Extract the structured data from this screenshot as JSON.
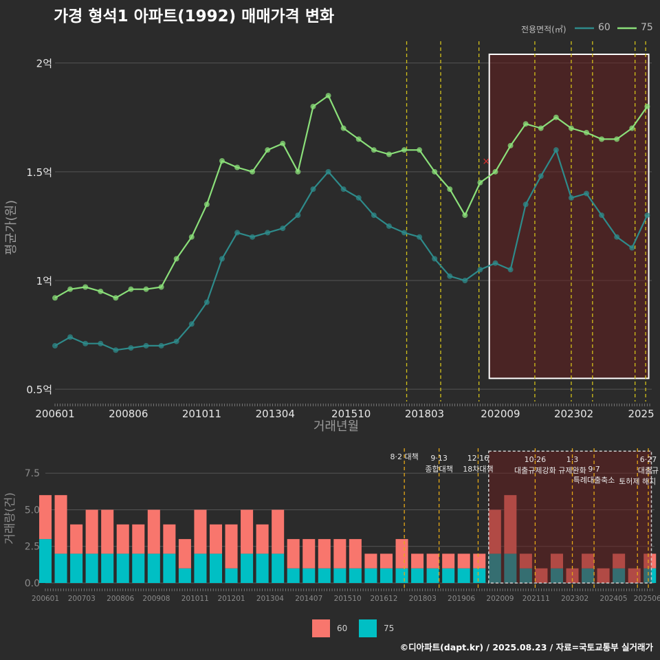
{
  "title": "가경 형석1 아파트(1992) 매매가격 변화",
  "source": "©디아파트(dapt.kr) / 2025.08.23 / 자료=국토교통부 실거래가",
  "legend_title": "전용면적(㎡)",
  "colors": {
    "s60_line": "#2e8b8b",
    "s75_line": "#8be07a",
    "s60_bar": "#f8766d",
    "s75_bar": "#00bfc4",
    "event": "#d4c21a",
    "event_bottom": "#e6a817",
    "highlight_fill": "#6a1e1e",
    "marker": "#e03030"
  },
  "chart_data": [
    {
      "type": "line",
      "title": "가경 형석1 아파트(1992) 매매가격 변화",
      "xlabel": "거래년월",
      "ylabel": "평균가(원)",
      "x_tick_labels": [
        "200601",
        "200806",
        "201011",
        "201304",
        "201510",
        "201803",
        "202009",
        "202302",
        "2025"
      ],
      "x_tick_values": [
        2006.0,
        2008.417,
        2010.833,
        2013.25,
        2015.75,
        2018.167,
        2020.667,
        2023.083,
        2025.3
      ],
      "xlim": [
        2006.0,
        2025.65
      ],
      "y_tick_labels": [
        "0.5억",
        "1억",
        "1.5억",
        "2억"
      ],
      "y_tick_values": [
        0.5,
        1.0,
        1.5,
        2.0
      ],
      "ylim": [
        0.45,
        2.1
      ],
      "y_unit": "억",
      "legend": [
        "60",
        "75"
      ],
      "legend_position": "top-right",
      "grid": true,
      "highlight_box": {
        "x": [
          2020.3,
          2025.55
        ],
        "y": [
          0.55,
          2.04
        ]
      },
      "event_lines_x": [
        2017.58,
        2018.7,
        2019.96,
        2021.8,
        2023.0,
        2023.7,
        2025.1,
        2025.45
      ],
      "markers": [
        {
          "x": 2020.2,
          "y": 1.55,
          "symbol": "×"
        }
      ],
      "series": [
        {
          "name": "60",
          "x": [
            2006.0,
            2006.5,
            2007.0,
            2007.5,
            2008.0,
            2008.5,
            2009.0,
            2009.5,
            2010.0,
            2010.5,
            2011.0,
            2011.5,
            2012.0,
            2012.5,
            2013.0,
            2013.5,
            2014.0,
            2014.5,
            2015.0,
            2015.5,
            2016.0,
            2016.5,
            2017.0,
            2017.5,
            2018.0,
            2018.5,
            2019.0,
            2019.5,
            2020.0,
            2020.5,
            2021.0,
            2021.5,
            2022.0,
            2022.5,
            2023.0,
            2023.5,
            2024.0,
            2024.5,
            2025.0,
            2025.5
          ],
          "y": [
            0.7,
            0.74,
            0.71,
            0.71,
            0.68,
            0.69,
            0.7,
            0.7,
            0.72,
            0.8,
            0.9,
            1.1,
            1.22,
            1.2,
            1.22,
            1.24,
            1.3,
            1.42,
            1.5,
            1.42,
            1.38,
            1.3,
            1.25,
            1.22,
            1.2,
            1.1,
            1.02,
            1.0,
            1.05,
            1.08,
            1.05,
            1.35,
            1.48,
            1.6,
            1.38,
            1.4,
            1.3,
            1.2,
            1.15,
            1.3
          ]
        },
        {
          "name": "75",
          "x": [
            2006.0,
            2006.5,
            2007.0,
            2007.5,
            2008.0,
            2008.5,
            2009.0,
            2009.5,
            2010.0,
            2010.5,
            2011.0,
            2011.5,
            2012.0,
            2012.5,
            2013.0,
            2013.5,
            2014.0,
            2014.5,
            2015.0,
            2015.5,
            2016.0,
            2016.5,
            2017.0,
            2017.5,
            2018.0,
            2018.5,
            2019.0,
            2019.5,
            2020.0,
            2020.5,
            2021.0,
            2021.5,
            2022.0,
            2022.5,
            2023.0,
            2023.5,
            2024.0,
            2024.5,
            2025.0,
            2025.5
          ],
          "y": [
            0.92,
            0.96,
            0.97,
            0.95,
            0.92,
            0.96,
            0.96,
            0.97,
            1.1,
            1.2,
            1.35,
            1.55,
            1.52,
            1.5,
            1.6,
            1.63,
            1.5,
            1.8,
            1.85,
            1.7,
            1.65,
            1.6,
            1.58,
            1.6,
            1.6,
            1.5,
            1.42,
            1.3,
            1.45,
            1.5,
            1.62,
            1.72,
            1.7,
            1.75,
            1.7,
            1.68,
            1.65,
            1.65,
            1.7,
            1.8
          ]
        }
      ]
    },
    {
      "type": "bar",
      "stacked": true,
      "xlabel": "",
      "ylabel": "거래량(건)",
      "x_tick_labels": [
        "200601",
        "200703",
        "200806",
        "200908",
        "201011",
        "201201",
        "201304",
        "201407",
        "201510",
        "201612",
        "201803",
        "201906",
        "202009",
        "202111",
        "202302",
        "202405",
        "202506"
      ],
      "x_tick_values": [
        2006.0,
        2007.17,
        2008.42,
        2009.58,
        2010.83,
        2012.0,
        2013.25,
        2014.5,
        2015.75,
        2016.92,
        2018.17,
        2019.42,
        2020.67,
        2021.83,
        2023.08,
        2024.33,
        2025.42
      ],
      "xlim": [
        2006.0,
        2025.65
      ],
      "y_tick_labels": [
        "0.0",
        "2.5",
        "5.0",
        "7.5"
      ],
      "y_tick_values": [
        0.0,
        2.5,
        5.0,
        7.5
      ],
      "ylim": [
        0,
        9.2
      ],
      "legend": [
        "60",
        "75"
      ],
      "legend_position": "bottom",
      "highlight_box": {
        "x": [
          2020.3,
          2025.55
        ],
        "y": [
          0,
          9.0
        ]
      },
      "event_lines_x": [
        2017.58,
        2018.7,
        2019.96,
        2021.8,
        2023.0,
        2023.7,
        2025.1,
        2025.45
      ],
      "annotations": [
        {
          "x": 2017.58,
          "lines": [
            "8·2 대책"
          ]
        },
        {
          "x": 2018.7,
          "lines": [
            "9·13",
            "종합대책"
          ]
        },
        {
          "x": 2019.96,
          "lines": [
            "12·16",
            "18차대책"
          ]
        },
        {
          "x": 2021.8,
          "lines": [
            "10·26",
            "대출규제강화"
          ]
        },
        {
          "x": 2023.0,
          "lines": [
            "1·3",
            "규제완화"
          ]
        },
        {
          "x": 2023.7,
          "lines": [
            "9·7",
            "특례대출축소"
          ]
        },
        {
          "x": 2025.1,
          "lines": [
            "토허제 해지"
          ]
        },
        {
          "x": 2025.45,
          "lines": [
            "6·27",
            "대출규"
          ]
        }
      ],
      "series": [
        {
          "name": "60",
          "x": [
            2006.0,
            2006.5,
            2007.0,
            2007.5,
            2008.0,
            2008.5,
            2009.0,
            2009.5,
            2010.0,
            2010.5,
            2011.0,
            2011.5,
            2012.0,
            2012.5,
            2013.0,
            2013.5,
            2014.0,
            2014.5,
            2015.0,
            2015.5,
            2016.0,
            2016.5,
            2017.0,
            2017.5,
            2018.0,
            2018.5,
            2019.0,
            2019.5,
            2020.0,
            2020.5,
            2021.0,
            2021.5,
            2022.0,
            2022.5,
            2023.0,
            2023.5,
            2024.0,
            2024.5,
            2025.0,
            2025.5
          ],
          "values": [
            3,
            4,
            2,
            3,
            3,
            2,
            2,
            3,
            2,
            2,
            3,
            2,
            3,
            3,
            2,
            3,
            2,
            2,
            2,
            2,
            2,
            1,
            1,
            2,
            1,
            1,
            1,
            1,
            1,
            3,
            4,
            1,
            1,
            1,
            1,
            1,
            1,
            1,
            1,
            1
          ]
        },
        {
          "name": "75",
          "x": [
            2006.0,
            2006.5,
            2007.0,
            2007.5,
            2008.0,
            2008.5,
            2009.0,
            2009.5,
            2010.0,
            2010.5,
            2011.0,
            2011.5,
            2012.0,
            2012.5,
            2013.0,
            2013.5,
            2014.0,
            2014.5,
            2015.0,
            2015.5,
            2016.0,
            2016.5,
            2017.0,
            2017.5,
            2018.0,
            2018.5,
            2019.0,
            2019.5,
            2020.0,
            2020.5,
            2021.0,
            2021.5,
            2022.0,
            2022.5,
            2023.0,
            2023.5,
            2024.0,
            2024.5,
            2025.0,
            2025.5
          ],
          "values": [
            3,
            2,
            2,
            2,
            2,
            2,
            2,
            2,
            2,
            1,
            2,
            2,
            1,
            2,
            2,
            2,
            1,
            1,
            1,
            1,
            1,
            1,
            1,
            1,
            1,
            1,
            1,
            1,
            1,
            2,
            2,
            1,
            0,
            1,
            0,
            1,
            0,
            1,
            0,
            1
          ]
        }
      ]
    }
  ]
}
